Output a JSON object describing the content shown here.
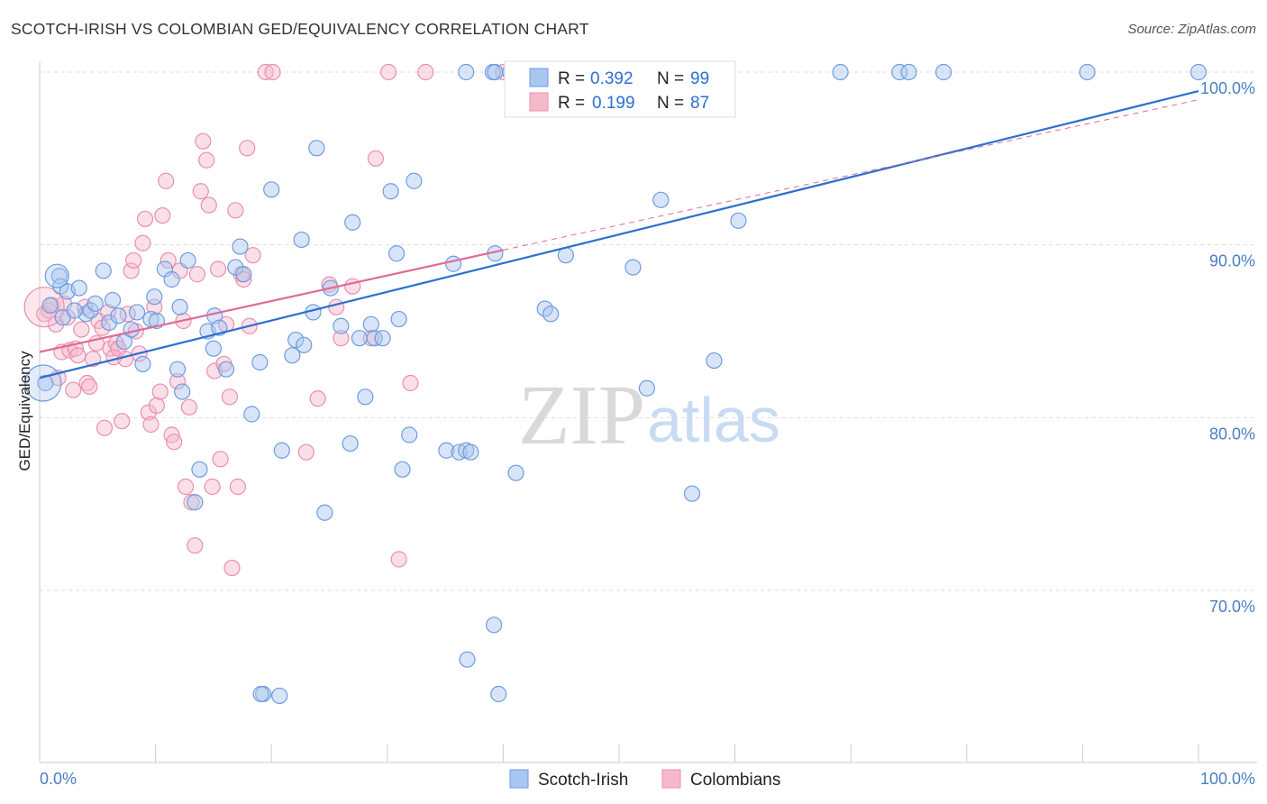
{
  "title": "SCOTCH-IRISH VS COLOMBIAN GED/EQUIVALENCY CORRELATION CHART",
  "source": "Source: ZipAtlas.com",
  "watermark": {
    "zip": "ZIP",
    "atlas": "atlas"
  },
  "colors": {
    "blue_fill": "#a9c6f0",
    "blue_stroke": "#6e9be0",
    "blue_line": "#2c6fcf",
    "pink_fill": "#f6b9cb",
    "pink_stroke": "#ea8fac",
    "pink_line": "#e06a95",
    "tick_text": "#4a7fc1",
    "grid": "#dddddd"
  },
  "legend": {
    "rows": [
      {
        "r_label": "R =",
        "r_value": "0.392",
        "n_label": "N =",
        "n_value": "99"
      },
      {
        "r_label": "R =",
        "r_value": "0.199",
        "n_label": "N =",
        "n_value": "87"
      }
    ]
  },
  "bottom_legend": [
    "Scotch-Irish",
    "Colombians"
  ],
  "chart_data": {
    "type": "scatter",
    "title": "SCOTCH-IRISH VS COLOMBIAN GED/EQUIVALENCY CORRELATION CHART",
    "xlabel": "",
    "ylabel": "GED/Equivalency",
    "xlim": [
      0,
      100
    ],
    "ylim": [
      59,
      102
    ],
    "x_tick_labels": [
      "0.0%",
      "100.0%"
    ],
    "y_ticks": [
      70,
      80,
      90,
      100
    ],
    "y_tick_labels": [
      "70.0%",
      "80.0%",
      "90.0%",
      "100.0%"
    ],
    "grid": true,
    "legend_position": "top-center",
    "series": [
      {
        "name": "Scotch-Irish",
        "R": 0.392,
        "N": 99,
        "trend": {
          "x0": 0,
          "y0": 82.3,
          "x1": 100,
          "y1": 98.9,
          "dashed_from": null
        },
        "points": [
          [
            1.7,
            88.2
          ],
          [
            1.8,
            87.6
          ],
          [
            2.4,
            87.3
          ],
          [
            3.4,
            87.5
          ],
          [
            4.0,
            86.0
          ],
          [
            4.4,
            86.2
          ],
          [
            4.8,
            86.6
          ],
          [
            5.5,
            88.5
          ],
          [
            6.0,
            85.5
          ],
          [
            6.3,
            86.8
          ],
          [
            6.8,
            85.9
          ],
          [
            7.3,
            84.4
          ],
          [
            7.9,
            85.1
          ],
          [
            8.4,
            86.1
          ],
          [
            8.9,
            83.1
          ],
          [
            9.6,
            85.7
          ],
          [
            10.1,
            85.6
          ],
          [
            10.8,
            88.6
          ],
          [
            11.4,
            88.0
          ],
          [
            11.9,
            82.8
          ],
          [
            12.3,
            81.5
          ],
          [
            12.8,
            89.1
          ],
          [
            13.8,
            77.0
          ],
          [
            13.4,
            75.1
          ],
          [
            14.5,
            85.0
          ],
          [
            15.1,
            85.9
          ],
          [
            15.5,
            85.2
          ],
          [
            16.1,
            82.8
          ],
          [
            16.9,
            88.7
          ],
          [
            17.3,
            89.9
          ],
          [
            17.6,
            88.3
          ],
          [
            18.3,
            80.2
          ],
          [
            19.0,
            83.2
          ],
          [
            19.3,
            64.0
          ],
          [
            19.1,
            64.0
          ],
          [
            20.0,
            93.2
          ],
          [
            20.7,
            63.9
          ],
          [
            20.9,
            78.1
          ],
          [
            21.8,
            83.6
          ],
          [
            22.1,
            84.5
          ],
          [
            22.6,
            90.3
          ],
          [
            23.6,
            86.1
          ],
          [
            23.9,
            95.6
          ],
          [
            24.6,
            74.5
          ],
          [
            25.1,
            87.5
          ],
          [
            26.0,
            85.3
          ],
          [
            26.8,
            78.5
          ],
          [
            27.0,
            91.3
          ],
          [
            27.6,
            84.6
          ],
          [
            28.1,
            81.2
          ],
          [
            28.6,
            85.4
          ],
          [
            28.9,
            84.6
          ],
          [
            29.6,
            84.6
          ],
          [
            30.3,
            93.1
          ],
          [
            30.8,
            89.5
          ],
          [
            31.0,
            85.7
          ],
          [
            31.3,
            77.0
          ],
          [
            31.9,
            79.0
          ],
          [
            32.3,
            93.7
          ],
          [
            35.1,
            78.1
          ],
          [
            35.7,
            88.9
          ],
          [
            36.2,
            78.0
          ],
          [
            36.8,
            78.1
          ],
          [
            36.8,
            100.0
          ],
          [
            36.9,
            66.0
          ],
          [
            37.2,
            78.0
          ],
          [
            39.1,
            100.0
          ],
          [
            39.2,
            68.0
          ],
          [
            39.3,
            100.0
          ],
          [
            39.3,
            89.5
          ],
          [
            39.6,
            64.0
          ],
          [
            41.1,
            76.8
          ],
          [
            40.6,
            100.0
          ],
          [
            43.6,
            86.3
          ],
          [
            44.1,
            86.0
          ],
          [
            45.4,
            89.4
          ],
          [
            46.9,
            100.0
          ],
          [
            51.2,
            88.7
          ],
          [
            52.4,
            81.7
          ],
          [
            53.6,
            92.6
          ],
          [
            53.3,
            100.0
          ],
          [
            56.3,
            75.6
          ],
          [
            57.1,
            100.0
          ],
          [
            58.2,
            83.3
          ],
          [
            60.3,
            91.4
          ],
          [
            69.1,
            100.0
          ],
          [
            74.2,
            100.0
          ],
          [
            75.0,
            100.0
          ],
          [
            78.0,
            100.0
          ],
          [
            90.4,
            100.0
          ],
          [
            100.0,
            100.0
          ],
          [
            0.5,
            82.0
          ],
          [
            0.9,
            86.5
          ],
          [
            2.0,
            85.8
          ],
          [
            3.0,
            86.2
          ],
          [
            9.9,
            87.0
          ],
          [
            12.1,
            86.4
          ],
          [
            15.0,
            84.0
          ],
          [
            22.8,
            84.2
          ]
        ]
      },
      {
        "name": "Colombians",
        "R": 0.199,
        "N": 87,
        "trend": {
          "x0": 0,
          "y0": 83.8,
          "x1": 40.0,
          "y1": 89.7,
          "dashed_to_x": 100,
          "dashed_to_y": 98.4
        },
        "points": [
          [
            0.4,
            86.0
          ],
          [
            0.8,
            86.2
          ],
          [
            1.1,
            86.5
          ],
          [
            1.4,
            85.4
          ],
          [
            1.6,
            82.3
          ],
          [
            1.9,
            83.8
          ],
          [
            2.1,
            86.6
          ],
          [
            2.4,
            85.8
          ],
          [
            2.6,
            83.9
          ],
          [
            2.9,
            81.6
          ],
          [
            3.1,
            84.0
          ],
          [
            3.3,
            83.6
          ],
          [
            3.6,
            85.1
          ],
          [
            3.9,
            86.4
          ],
          [
            4.1,
            82.0
          ],
          [
            4.3,
            81.8
          ],
          [
            4.6,
            83.4
          ],
          [
            4.9,
            84.3
          ],
          [
            5.1,
            85.6
          ],
          [
            5.4,
            85.2
          ],
          [
            5.6,
            79.4
          ],
          [
            5.9,
            86.1
          ],
          [
            6.1,
            84.0
          ],
          [
            6.4,
            83.5
          ],
          [
            6.6,
            84.3
          ],
          [
            6.8,
            84.0
          ],
          [
            7.1,
            79.8
          ],
          [
            7.4,
            83.4
          ],
          [
            7.6,
            86.0
          ],
          [
            7.9,
            88.5
          ],
          [
            8.1,
            89.1
          ],
          [
            8.3,
            85.0
          ],
          [
            8.6,
            83.7
          ],
          [
            8.9,
            90.1
          ],
          [
            9.1,
            91.5
          ],
          [
            9.4,
            80.3
          ],
          [
            9.6,
            79.6
          ],
          [
            9.9,
            86.4
          ],
          [
            10.1,
            80.7
          ],
          [
            10.4,
            81.5
          ],
          [
            10.6,
            91.7
          ],
          [
            10.9,
            93.7
          ],
          [
            11.1,
            89.1
          ],
          [
            11.4,
            79.0
          ],
          [
            11.6,
            78.6
          ],
          [
            11.9,
            82.1
          ],
          [
            12.1,
            88.5
          ],
          [
            12.4,
            85.6
          ],
          [
            12.6,
            76.0
          ],
          [
            12.9,
            80.6
          ],
          [
            13.1,
            75.1
          ],
          [
            13.4,
            72.6
          ],
          [
            13.6,
            88.3
          ],
          [
            13.9,
            93.1
          ],
          [
            14.1,
            96.0
          ],
          [
            14.4,
            94.9
          ],
          [
            14.6,
            92.3
          ],
          [
            14.9,
            76.0
          ],
          [
            15.1,
            82.7
          ],
          [
            15.4,
            88.6
          ],
          [
            15.6,
            77.6
          ],
          [
            15.9,
            83.1
          ],
          [
            16.1,
            85.4
          ],
          [
            16.4,
            81.2
          ],
          [
            16.6,
            71.3
          ],
          [
            16.9,
            92.0
          ],
          [
            17.1,
            76.0
          ],
          [
            17.4,
            88.3
          ],
          [
            17.6,
            88.0
          ],
          [
            17.9,
            95.6
          ],
          [
            18.1,
            85.3
          ],
          [
            18.4,
            89.4
          ],
          [
            19.5,
            100.0
          ],
          [
            20.1,
            100.0
          ],
          [
            23.0,
            78.0
          ],
          [
            24.0,
            81.1
          ],
          [
            25.0,
            87.7
          ],
          [
            25.6,
            86.4
          ],
          [
            26.0,
            84.6
          ],
          [
            27.0,
            87.6
          ],
          [
            28.6,
            84.6
          ],
          [
            29.0,
            95.0
          ],
          [
            30.1,
            100.0
          ],
          [
            31.0,
            71.8
          ],
          [
            32.0,
            82.0
          ],
          [
            33.3,
            100.0
          ],
          [
            40.0,
            100.0
          ]
        ]
      }
    ]
  }
}
